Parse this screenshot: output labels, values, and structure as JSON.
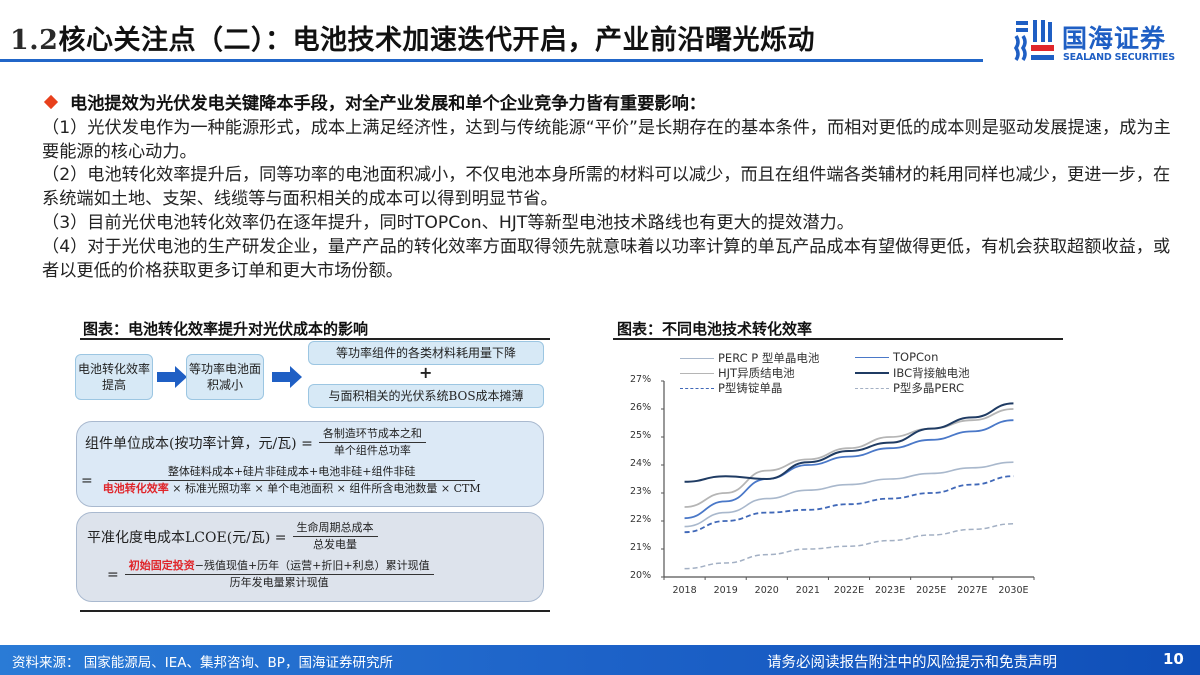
{
  "header": {
    "title_number": "1.2",
    "title_text": "核心关注点（二）：电池技术加速迭代开启，产业前沿曙光烁动",
    "logo_cn": "国海证券",
    "logo_en": "SEALAND SECURITIES",
    "accent_color": "#2166c8"
  },
  "body": {
    "bullet": "电池提效为光伏发电关键降本手段，对全产业发展和单个企业竞争力皆有重要影响：",
    "paragraphs": [
      "（1）光伏发电作为一种能源形式，成本上满足经济性，达到与传统能源“平价”是长期存在的基本条件，而相对更低的成本则是驱动发展提速，成为主要能源的核心动力。",
      "（2）电池转化效率提升后，同等功率的电池面积减小，不仅电池本身所需的材料可以减少，而且在组件端各类辅材的耗用同样也减少，更进一步，在系统端如土地、支架、线缆等与面积相关的成本可以得到明显节省。",
      "（3）目前光伏电池转化效率仍在逐年提升，同时TOPCon、HJT等新型电池技术路线也有更大的提效潜力。",
      "（4）对于光伏电池的生产研发企业，量产产品的转化效率方面取得领先就意味着以功率计算的单瓦产品成本有望做得更低，有机会获取超额收益，或者以更低的价格获取更多订单和更大市场份额。"
    ]
  },
  "left_figure": {
    "title": "图表：电池转化效率提升对光伏成本的影响",
    "flow": {
      "box1": "电池转化效率提高",
      "box2": "等功率电池面积减小",
      "box3": "等功率组件的各类材料耗用量下降",
      "plus": "+",
      "box4": "与面积相关的光伏系统BOS成本摊薄"
    },
    "formula1": {
      "lhs": "组件单位成本(按功率计算，元/瓦) =",
      "num": "各制造环节成本之和",
      "den": "单个组件总功率",
      "eq2": "=",
      "num2": "整体硅料成本+硅片非硅成本+电池非硅+组件非硅",
      "den2_red": "电池转化效率",
      "den2_rest": " × 标准光照功率 × 单个电池面积 × 组件所含电池数量 × CTM"
    },
    "formula2": {
      "lhs": "平准化度电成本LCOE(元/瓦) =",
      "num": "生命周期总成本",
      "den": "总发电量",
      "eq2": "=",
      "num2_red": "初始固定投资",
      "num2_rest": "−残值现值+历年（运营+折旧+利息）累计现值",
      "den2": "历年发电量累计现值"
    }
  },
  "right_figure": {
    "title": "图表：不同电池技术转化效率"
  },
  "chart_data": {
    "type": "line",
    "title": "不同电池技术转化效率",
    "xlabel": "",
    "ylabel": "",
    "categories": [
      "2018",
      "2019",
      "2020",
      "2021",
      "2022E",
      "2023E",
      "2025E",
      "2027E",
      "2030E"
    ],
    "y_ticks": [
      "20%",
      "21%",
      "22%",
      "23%",
      "24%",
      "25%",
      "26%",
      "27%"
    ],
    "ylim": [
      20,
      27
    ],
    "grid": false,
    "legend_position": "top",
    "series": [
      {
        "name": "PERC P 型单晶电池",
        "color": "#a9b8cc",
        "dash": false,
        "width": 1.6,
        "values": [
          21.8,
          22.3,
          22.8,
          23.1,
          23.3,
          23.5,
          23.7,
          23.9,
          24.1
        ]
      },
      {
        "name": "TOPCon",
        "color": "#4a78c8",
        "dash": false,
        "width": 1.8,
        "values": [
          22.1,
          22.7,
          23.5,
          24.0,
          24.3,
          24.6,
          24.9,
          25.2,
          25.6
        ]
      },
      {
        "name": "HJT异质结电池",
        "color": "#b5b5b5",
        "dash": false,
        "width": 1.8,
        "values": [
          22.5,
          23.0,
          23.8,
          24.2,
          24.6,
          25.0,
          25.3,
          25.6,
          26.0
        ]
      },
      {
        "name": "IBC背接触电池",
        "color": "#1f3b63",
        "dash": false,
        "width": 2.0,
        "values": [
          23.4,
          23.6,
          23.5,
          24.1,
          24.5,
          24.8,
          25.3,
          25.7,
          26.2
        ]
      },
      {
        "name": "P型铸锭单晶",
        "color": "#4068b8",
        "dash": true,
        "width": 1.8,
        "values": [
          21.6,
          22.0,
          22.3,
          22.4,
          22.6,
          22.8,
          23.0,
          23.3,
          23.6
        ]
      },
      {
        "name": "P型多晶PERC",
        "color": "#a3b0c4",
        "dash": true,
        "width": 1.5,
        "values": [
          20.3,
          20.5,
          20.8,
          21.0,
          21.1,
          21.3,
          21.5,
          21.7,
          21.9
        ]
      }
    ]
  },
  "footer": {
    "source": "资料来源：  国家能源局、IEA、集邦咨询、BP，国海证券研究所",
    "disclaimer": "请务必阅读报告附注中的风险提示和免责声明",
    "page_number": "10"
  }
}
